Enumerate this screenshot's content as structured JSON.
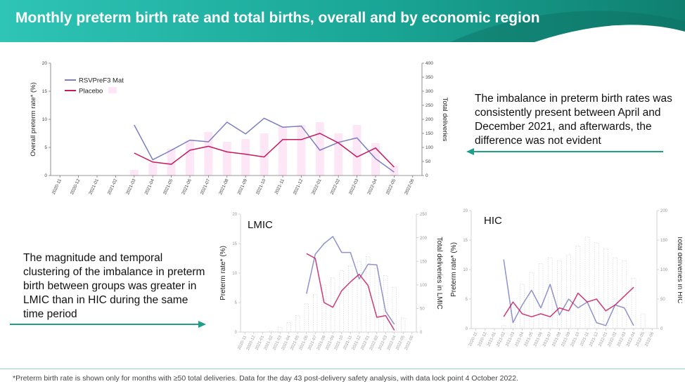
{
  "title": "Monthly preterm birth rate and total births, overall and by economic region",
  "colors": {
    "rsv": "#7b7fc4",
    "placebo": "#c8185e",
    "bars": "#fde6f6",
    "banner_left": "#2ec4b6",
    "banner_right": "#12806f"
  },
  "callouts": {
    "top": "The imbalance in preterm birth rates was consistently present between April and December 2021, and afterwards, the difference was not evident",
    "bottom": "The magnitude and temporal clustering of the imbalance in preterm birth between groups was greater in LMIC than in HIC during the same time period"
  },
  "footnote": "*Preterm birth rate is shown only for months with ≥50 total deliveries. Data for the day 43 post-delivery safety analysis, with data lock point 4 October 2022.",
  "chart_data": [
    {
      "id": "overall",
      "type": "bar+line",
      "title": "",
      "ylabel": "Overall preterm rate* (%)",
      "y2label": "Total deliveries",
      "ylim": [
        0,
        20
      ],
      "y2lim": [
        0,
        400
      ],
      "yticks": [
        "0",
        "5",
        "10",
        "15",
        "20"
      ],
      "y2ticks": [
        "0",
        "50",
        "100",
        "150",
        "200",
        "250",
        "300",
        "350",
        "400"
      ],
      "categories": [
        "2020-11",
        "2020-12",
        "2021-01",
        "2021-02",
        "2021-03",
        "2021-04",
        "2021-05",
        "2021-06",
        "2021-07",
        "2021-08",
        "2021-09",
        "2021-10",
        "2021-11",
        "2021-12",
        "2022-01",
        "2022-02",
        "2022-03",
        "2022-04",
        "2022-05",
        "2022-06"
      ],
      "bars": {
        "name": "Total deliveries",
        "values": [
          0,
          0,
          0,
          2,
          20,
          45,
          95,
          125,
          155,
          120,
          130,
          150,
          175,
          180,
          190,
          150,
          180,
          115,
          35,
          0
        ]
      },
      "legend": [
        "RSVPreF3 Mat",
        "Placebo"
      ],
      "series": [
        {
          "name": "RSVPreF3 Mat",
          "values": [
            null,
            null,
            null,
            null,
            9,
            2.8,
            4.5,
            6.3,
            6.0,
            9.5,
            7.4,
            10.2,
            8.6,
            8.8,
            4.5,
            5.9,
            6.7,
            3.0,
            0.6,
            null
          ]
        },
        {
          "name": "Placebo",
          "values": [
            null,
            null,
            null,
            null,
            4.0,
            2.4,
            2.0,
            4.5,
            5.2,
            4.2,
            3.8,
            3.3,
            6.4,
            6.4,
            7.5,
            5.8,
            3.3,
            4.9,
            1.5,
            null
          ]
        }
      ]
    },
    {
      "id": "lmic",
      "type": "bar+line",
      "title": "LMIC",
      "ylabel": "Preterm rate* (%)",
      "y2label": "Total deliveries in LMIC",
      "ylim": [
        0,
        20
      ],
      "y2lim": [
        0,
        250
      ],
      "yticks": [
        "0",
        "5",
        "10",
        "15",
        "20"
      ],
      "y2ticks": [
        "0",
        "50",
        "100",
        "150",
        "200",
        "250"
      ],
      "categories": [
        "2020-11",
        "2020-12",
        "2021-01",
        "2021-02",
        "2021-03",
        "2021-04",
        "2021-05",
        "2021-06",
        "2021-07",
        "2021-08",
        "2021-09",
        "2021-10",
        "2021-11",
        "2021-12",
        "2022-01",
        "2022-02",
        "2022-03",
        "2022-04",
        "2022-05",
        "2022-06"
      ],
      "bars": {
        "name": "Total deliveries in LMIC",
        "values": [
          0,
          0,
          0,
          2,
          10,
          20,
          35,
          60,
          80,
          100,
          115,
          130,
          140,
          150,
          160,
          135,
          120,
          95,
          30,
          0
        ]
      },
      "series": [
        {
          "name": "RSVPreF3 Mat",
          "values": [
            null,
            null,
            null,
            null,
            null,
            null,
            null,
            6.5,
            13.2,
            15.0,
            16.2,
            13.5,
            13.5,
            9.0,
            11.5,
            11.4,
            3.5,
            1.3,
            null,
            null
          ]
        },
        {
          "name": "Placebo",
          "values": [
            null,
            null,
            null,
            null,
            null,
            null,
            null,
            13.3,
            12.5,
            5.0,
            4.2,
            7.0,
            8.5,
            9.8,
            7.9,
            2.5,
            2.8,
            0.3,
            null,
            null
          ]
        }
      ]
    },
    {
      "id": "hic",
      "type": "bar+line",
      "title": "HIC",
      "ylabel": "Preterm rate* (%)",
      "y2label": "Total deliveries in HIC",
      "ylim": [
        0,
        20
      ],
      "y2lim": [
        0,
        200
      ],
      "yticks": [
        "0",
        "5",
        "10",
        "15",
        "20"
      ],
      "y2ticks": [
        "0",
        "50",
        "100",
        "150",
        "200"
      ],
      "categories": [
        "2020-11",
        "2020-12",
        "2021-01",
        "2021-02",
        "2021-03",
        "2021-04",
        "2021-05",
        "2021-06",
        "2021-07",
        "2021-08",
        "2021-09",
        "2021-10",
        "2021-11",
        "2021-12",
        "2022-01",
        "2022-02",
        "2022-03",
        "2022-04",
        "2022-05",
        "2022-06"
      ],
      "bars": {
        "name": "Total deliveries in HIC",
        "values": [
          0,
          0,
          0,
          5,
          40,
          75,
          95,
          110,
          120,
          115,
          125,
          140,
          155,
          145,
          135,
          120,
          115,
          85,
          25,
          0
        ]
      },
      "series": [
        {
          "name": "RSVPreF3 Mat",
          "values": [
            null,
            null,
            null,
            11.7,
            1.0,
            4.0,
            6.5,
            3.5,
            7.5,
            2.3,
            5.0,
            3.5,
            4.5,
            1.0,
            0.5,
            4.0,
            3.5,
            0.5,
            null,
            null
          ]
        },
        {
          "name": "Placebo",
          "values": [
            null,
            null,
            null,
            2.0,
            4.5,
            2.5,
            2.0,
            2.5,
            2.0,
            3.5,
            3.0,
            6.0,
            4.5,
            5.0,
            3.0,
            4.0,
            5.5,
            7.0,
            null,
            null
          ]
        }
      ]
    }
  ]
}
